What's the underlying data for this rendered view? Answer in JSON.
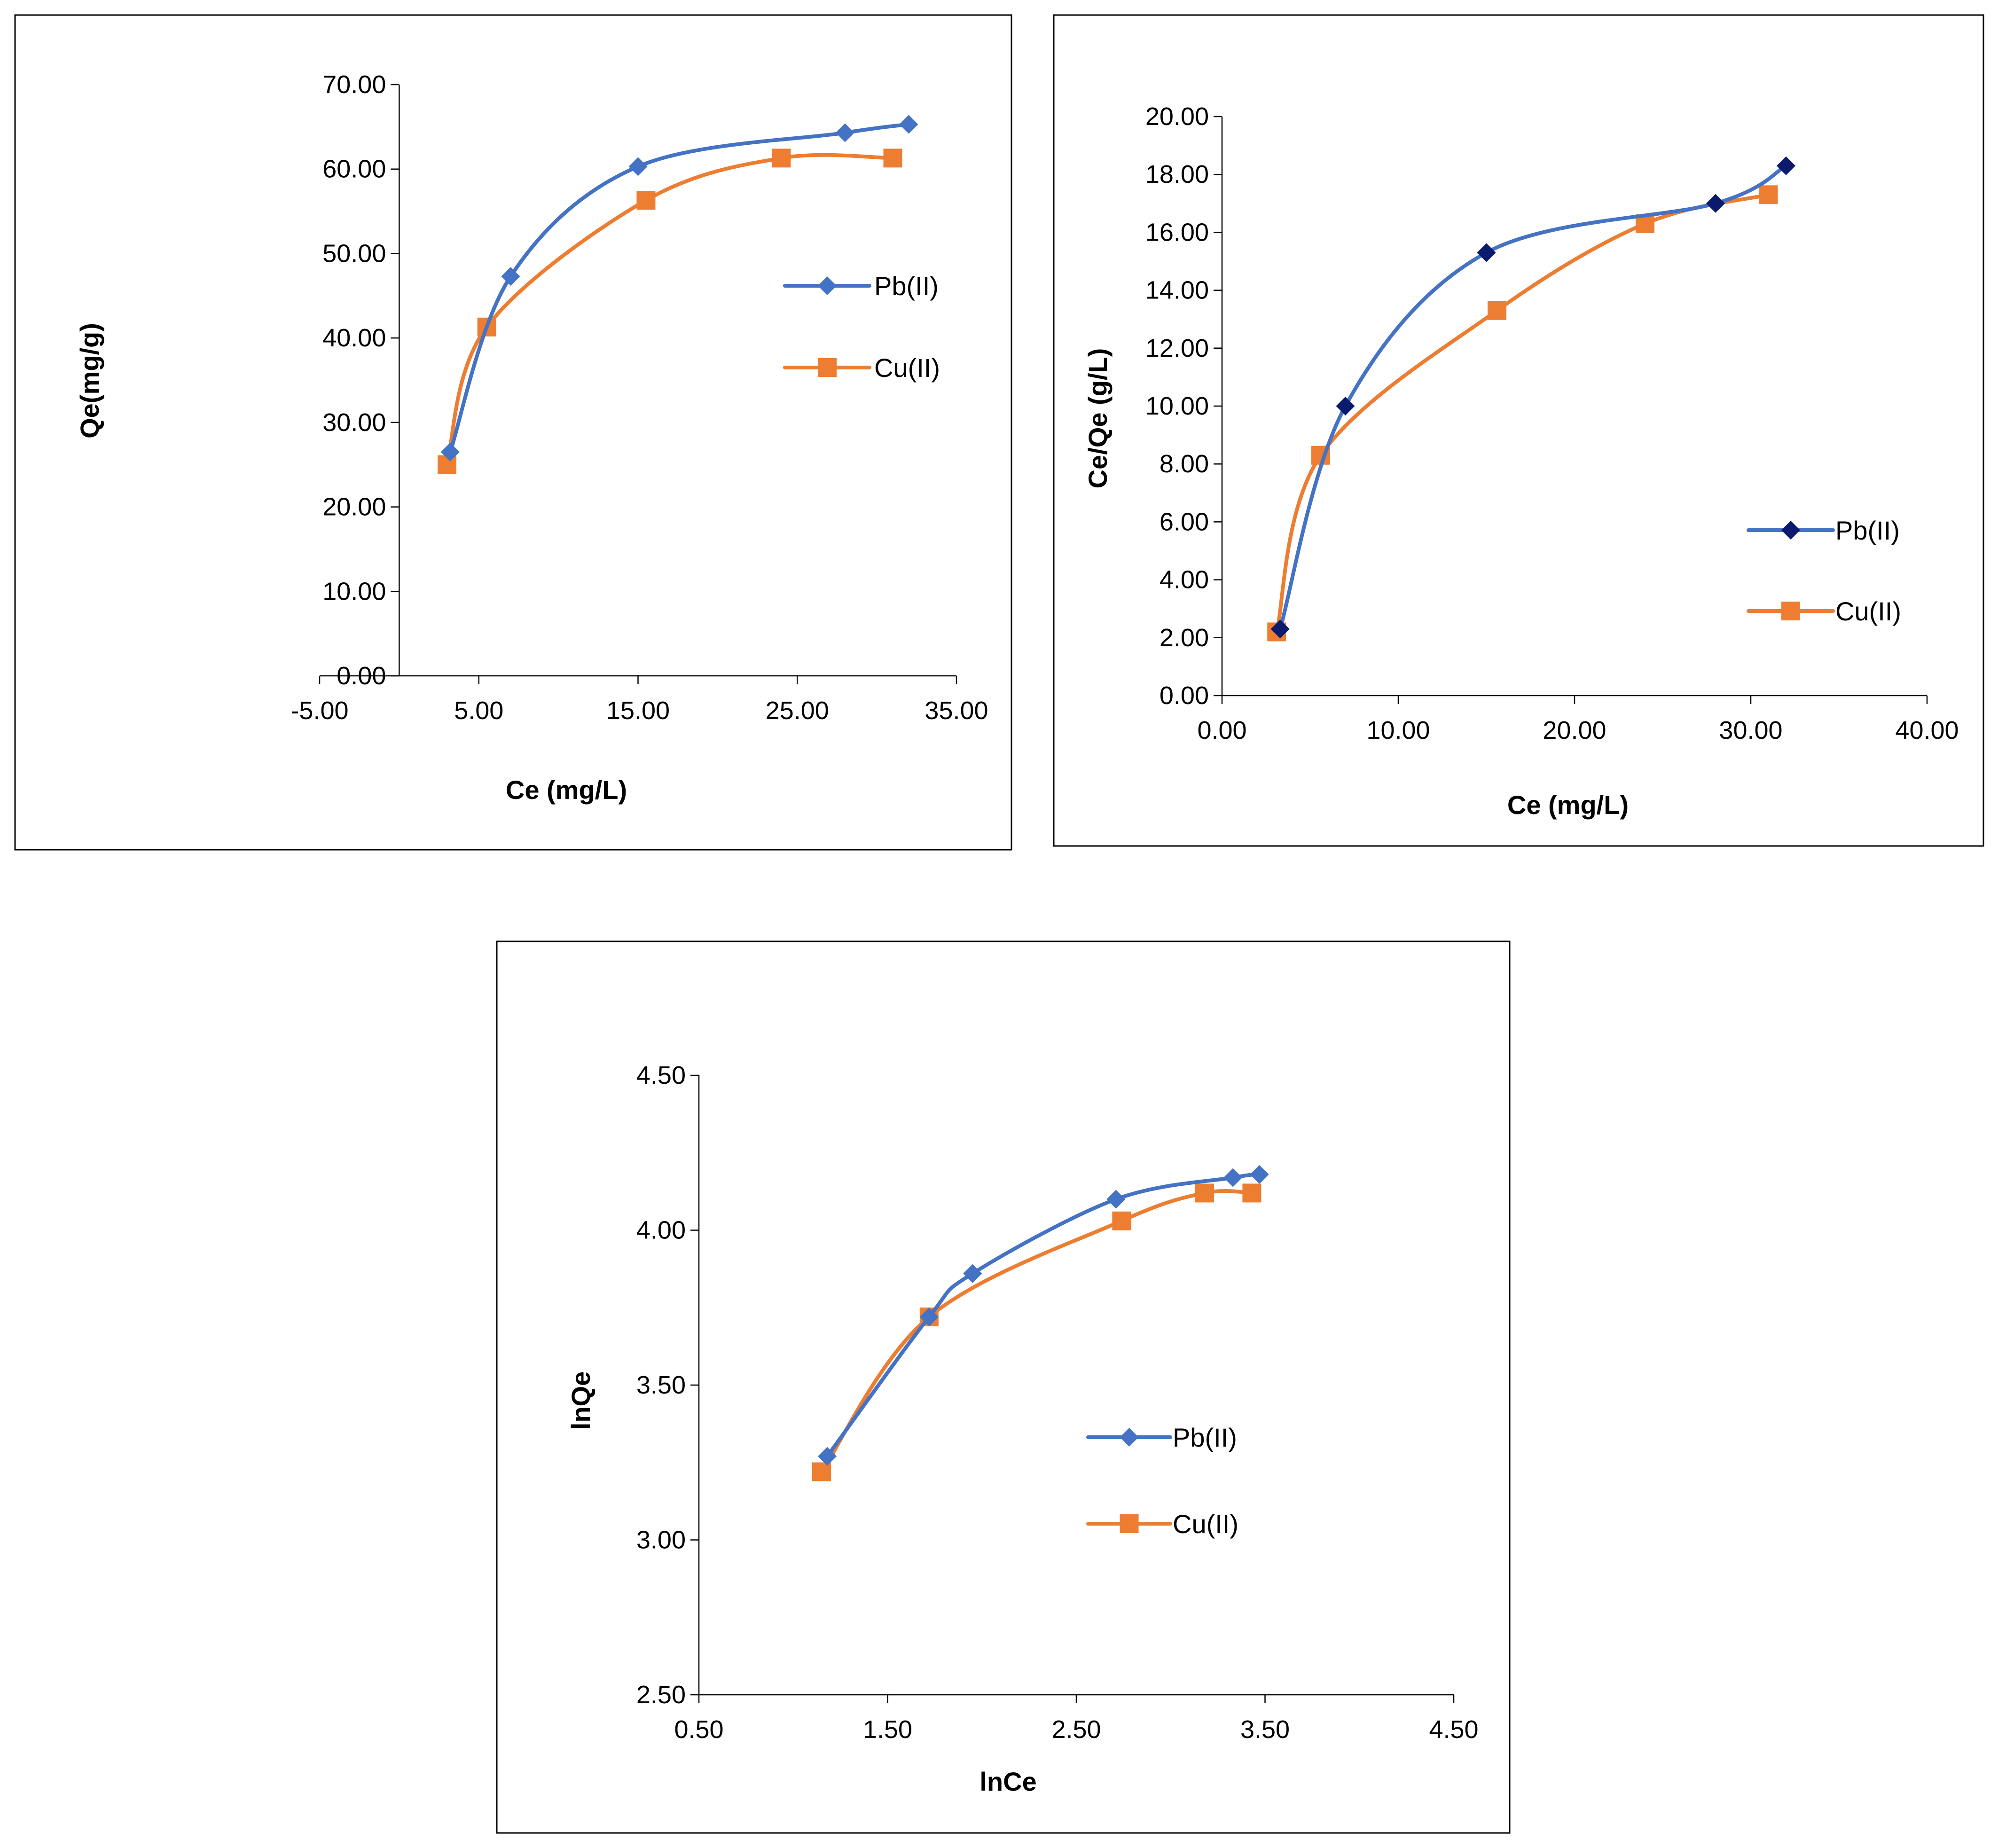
{
  "colors": {
    "pb": "#4472C4",
    "pb_marker_chart2": "#0A1B6E",
    "cu": "#ED7D31",
    "axis": "#000000",
    "frame": "#000000"
  },
  "chart_data": [
    {
      "id": "freundlich-langmuir-qe",
      "type": "scatter",
      "title": "",
      "xlabel": "Ce (mg/L)",
      "ylabel": "Qe(mg/g)",
      "xlim": [
        -5,
        35
      ],
      "ylim": [
        0,
        70
      ],
      "xticks": [
        "-5.00",
        "5.00",
        "15.00",
        "25.00",
        "35.00"
      ],
      "xtick_values": [
        -5,
        5,
        15,
        25,
        35
      ],
      "yticks": [
        "0.00",
        "10.00",
        "20.00",
        "30.00",
        "40.00",
        "50.00",
        "60.00",
        "70.00"
      ],
      "ytick_values": [
        0,
        10,
        20,
        30,
        40,
        50,
        60,
        70
      ],
      "legend_position": "right-middle",
      "series": [
        {
          "name": "Pb(II)",
          "marker": "diamond",
          "color_key": "pb",
          "marker_color_key": "pb",
          "x": [
            3.2,
            7.0,
            15.0,
            28.0,
            32.0
          ],
          "y": [
            26.5,
            47.3,
            60.3,
            64.3,
            65.3
          ]
        },
        {
          "name": "Cu(II)",
          "marker": "square",
          "color_key": "cu",
          "marker_color_key": "cu",
          "x": [
            3.0,
            5.5,
            15.5,
            24.0,
            31.0
          ],
          "y": [
            25.0,
            41.3,
            56.3,
            61.3,
            61.3
          ]
        }
      ]
    },
    {
      "id": "langmuir-linear",
      "type": "scatter",
      "title": "",
      "xlabel": "Ce (mg/L)",
      "ylabel": "Ce/Qe (g/L)",
      "xlim": [
        0,
        40
      ],
      "ylim": [
        0,
        20
      ],
      "xticks": [
        "0.00",
        "10.00",
        "20.00",
        "30.00",
        "40.00"
      ],
      "xtick_values": [
        0,
        10,
        20,
        30,
        40
      ],
      "yticks": [
        "0.00",
        "2.00",
        "4.00",
        "6.00",
        "8.00",
        "10.00",
        "12.00",
        "14.00",
        "16.00",
        "18.00",
        "20.00"
      ],
      "ytick_values": [
        0,
        2,
        4,
        6,
        8,
        10,
        12,
        14,
        16,
        18,
        20
      ],
      "legend_position": "right-bottom",
      "series": [
        {
          "name": "Pb(II)",
          "marker": "diamond",
          "color_key": "pb",
          "marker_color_key": "pb_marker_chart2",
          "x": [
            3.3,
            7.0,
            15.0,
            28.0,
            32.0
          ],
          "y": [
            2.3,
            10.0,
            15.3,
            17.0,
            18.3
          ]
        },
        {
          "name": "Cu(II)",
          "marker": "square",
          "color_key": "cu",
          "marker_color_key": "cu",
          "x": [
            3.1,
            5.6,
            15.6,
            24.0,
            31.0
          ],
          "y": [
            2.2,
            8.3,
            13.3,
            16.3,
            17.3
          ]
        }
      ]
    },
    {
      "id": "freundlich-linear",
      "type": "scatter",
      "title": "",
      "xlabel": "lnCe",
      "ylabel": "lnQe",
      "xlim": [
        0.5,
        4.5
      ],
      "ylim": [
        2.5,
        4.5
      ],
      "xticks": [
        "0.50",
        "1.50",
        "2.50",
        "3.50",
        "4.50"
      ],
      "xtick_values": [
        0.5,
        1.5,
        2.5,
        3.5,
        4.5
      ],
      "yticks": [
        "2.50",
        "3.00",
        "3.50",
        "4.00",
        "4.50"
      ],
      "ytick_values": [
        2.5,
        3.0,
        3.5,
        4.0,
        4.5
      ],
      "legend_position": "center-bottom",
      "series": [
        {
          "name": "Pb(II)",
          "marker": "diamond",
          "color_key": "pb",
          "marker_color_key": "pb",
          "x": [
            1.18,
            1.72,
            1.95,
            2.71,
            3.33,
            3.47
          ],
          "y": [
            3.27,
            3.72,
            3.86,
            4.1,
            4.17,
            4.18
          ]
        },
        {
          "name": "Cu(II)",
          "marker": "square",
          "color_key": "cu",
          "marker_color_key": "cu",
          "x": [
            1.15,
            1.72,
            2.74,
            3.18,
            3.43
          ],
          "y": [
            3.22,
            3.72,
            4.03,
            4.12,
            4.12
          ]
        }
      ]
    }
  ]
}
